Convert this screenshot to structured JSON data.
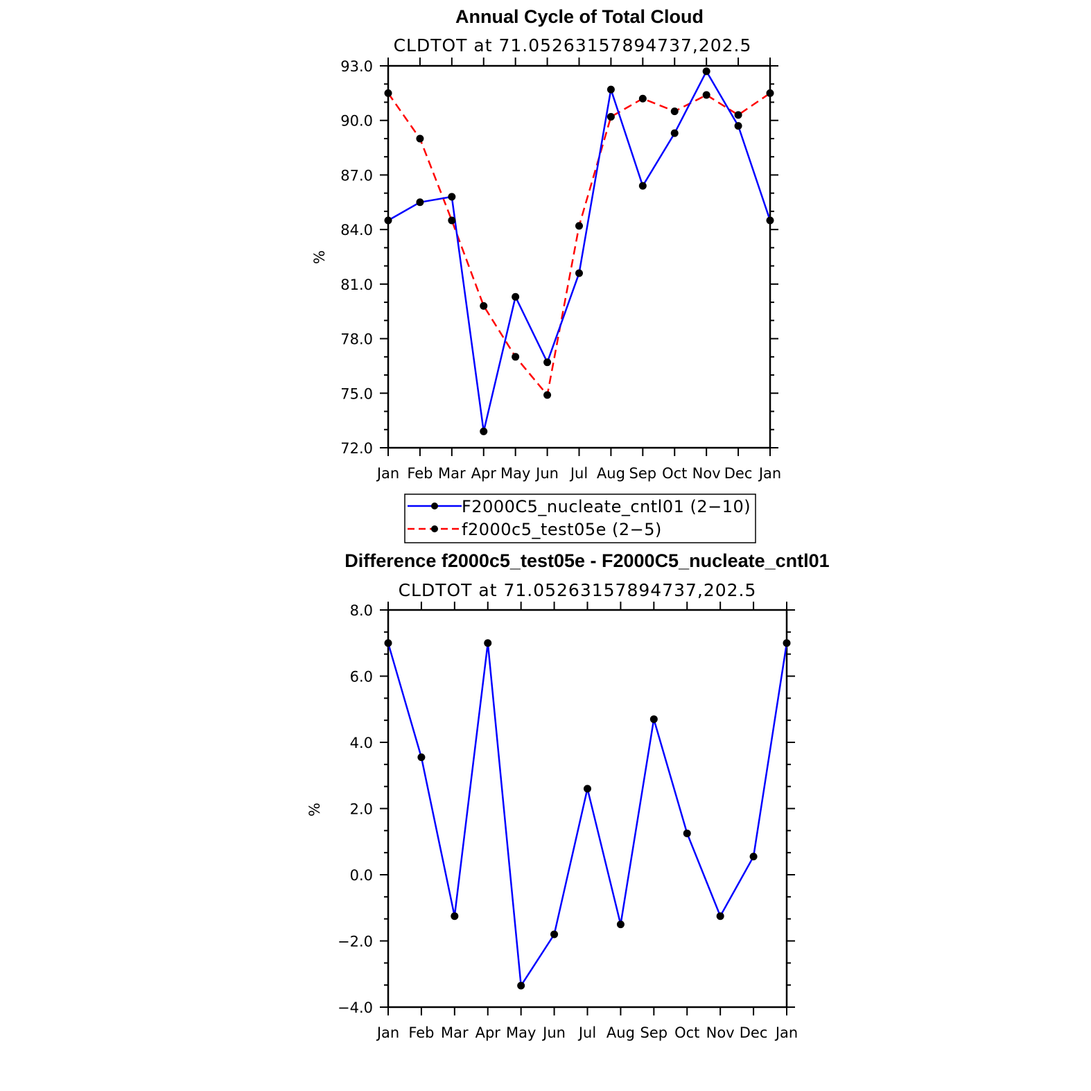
{
  "chart_data": [
    {
      "type": "line",
      "title": "Annual Cycle of Total Cloud",
      "subtitle": "CLDTOT  at  71.05263157894737,202.5",
      "ylabel": "%",
      "ylim": [
        72.0,
        93.0
      ],
      "yticks": [
        "72.0",
        "75.0",
        "78.0",
        "81.0",
        "84.0",
        "87.0",
        "90.0",
        "93.0"
      ],
      "categories": [
        "Jan",
        "Feb",
        "Mar",
        "Apr",
        "May",
        "Jun",
        "Jul",
        "Aug",
        "Sep",
        "Oct",
        "Nov",
        "Dec",
        "Jan"
      ],
      "series": [
        {
          "name": "F2000C5_nucleate_cntl01 (2−10)",
          "color": "#0000ff",
          "dash": "solid",
          "values": [
            84.5,
            85.5,
            85.8,
            72.9,
            80.3,
            76.7,
            81.6,
            91.7,
            86.4,
            89.3,
            92.7,
            89.7,
            84.5
          ]
        },
        {
          "name": "f2000c5_test05e (2−5)",
          "color": "#ff0000",
          "dash": "dashed",
          "values": [
            91.5,
            89.0,
            84.5,
            79.8,
            77.0,
            74.9,
            84.2,
            90.2,
            91.2,
            90.5,
            91.4,
            90.3,
            91.5
          ]
        }
      ],
      "legend_placement": "below"
    },
    {
      "type": "line",
      "title": "Difference f2000c5_test05e - F2000C5_nucleate_cntl01",
      "subtitle": "CLDTOT  at  71.05263157894737,202.5",
      "ylabel": "%",
      "ylim": [
        -4.0,
        8.0
      ],
      "yticks": [
        "−4.0",
        "−2.0",
        "0.0",
        "2.0",
        "4.0",
        "6.0",
        "8.0"
      ],
      "categories": [
        "Jan",
        "Feb",
        "Mar",
        "Apr",
        "May",
        "Jun",
        "Jul",
        "Aug",
        "Sep",
        "Oct",
        "Nov",
        "Dec",
        "Jan"
      ],
      "series": [
        {
          "color": "#0000ff",
          "dash": "solid",
          "values": [
            7.0,
            3.55,
            -1.25,
            7.0,
            -3.35,
            -1.8,
            2.6,
            -1.5,
            4.7,
            1.25,
            -1.25,
            0.55,
            7.0
          ]
        }
      ]
    }
  ]
}
